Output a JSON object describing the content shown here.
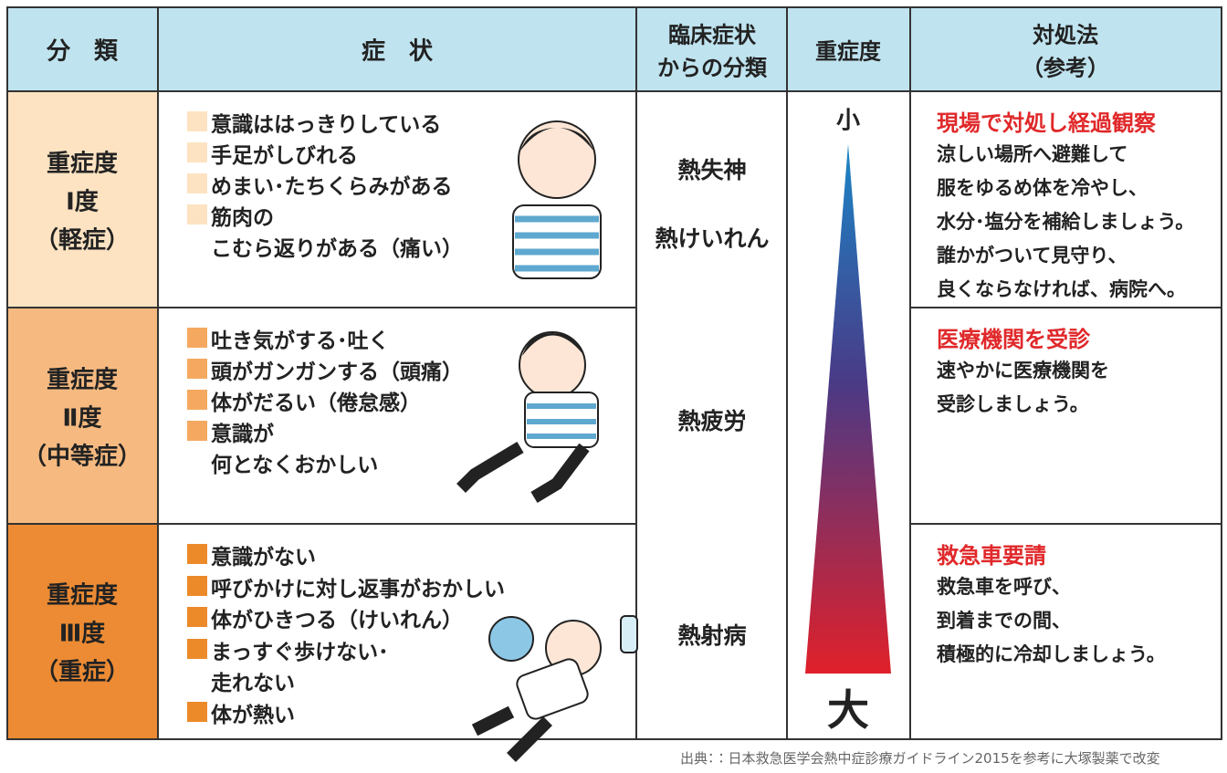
{
  "header": {
    "category": "分　類",
    "symptoms": "症　状",
    "clinical": [
      "臨床症状",
      "からの分類"
    ],
    "severity": "重症度",
    "treatment": [
      "対処法",
      "（参考）"
    ]
  },
  "rows": [
    {
      "category": [
        "重症度",
        "Ⅰ度",
        "（軽症）"
      ],
      "symptoms": [
        [
          "意識ははっきりしている"
        ],
        [
          "手足がしびれる"
        ],
        [
          "めまい･たちくらみがある"
        ],
        [
          "筋肉の",
          "こむら返りがある（痛い）"
        ]
      ],
      "clinical": [
        "熱失神",
        "熱けいれん"
      ],
      "treatment_title": "現場で対処し経過観察",
      "treatment": [
        "涼しい場所へ避難して",
        "服をゆるめ体を冷やし、",
        "水分･塩分を補給しましょう。",
        "誰かがついて見守り、",
        "良くならなければ、病院へ。"
      ]
    },
    {
      "category": [
        "重症度",
        "Ⅱ度",
        "（中等症）"
      ],
      "symptoms": [
        [
          "吐き気がする･吐く"
        ],
        [
          "頭がガンガンする（頭痛）"
        ],
        [
          "体がだるい（倦怠感）"
        ],
        [
          "意識が",
          "何となくおかしい"
        ]
      ],
      "clinical": [
        "熱疲労"
      ],
      "treatment_title": "医療機関を受診",
      "treatment": [
        "速やかに医療機関を",
        "受診しましょう。"
      ]
    },
    {
      "category": [
        "重症度",
        "Ⅲ度",
        "（重症）"
      ],
      "symptoms": [
        [
          "意識がない"
        ],
        [
          "呼びかけに対し返事がおかしい"
        ],
        [
          "体がひきつる（けいれん）"
        ],
        [
          "まっすぐ歩けない･",
          "走れない"
        ],
        [
          "体が熱い"
        ]
      ],
      "clinical": [
        "熱射病"
      ],
      "treatment_title": "救急車要請",
      "treatment": [
        "救急車を呼び、",
        "到着までの間、",
        "積極的に冷却しましょう。"
      ]
    }
  ],
  "severity": {
    "low": "小",
    "high": "大"
  },
  "source": "出典：：日本救急医学会熱中症診療ガイドライン2015を参考に大塚製薬で改変"
}
